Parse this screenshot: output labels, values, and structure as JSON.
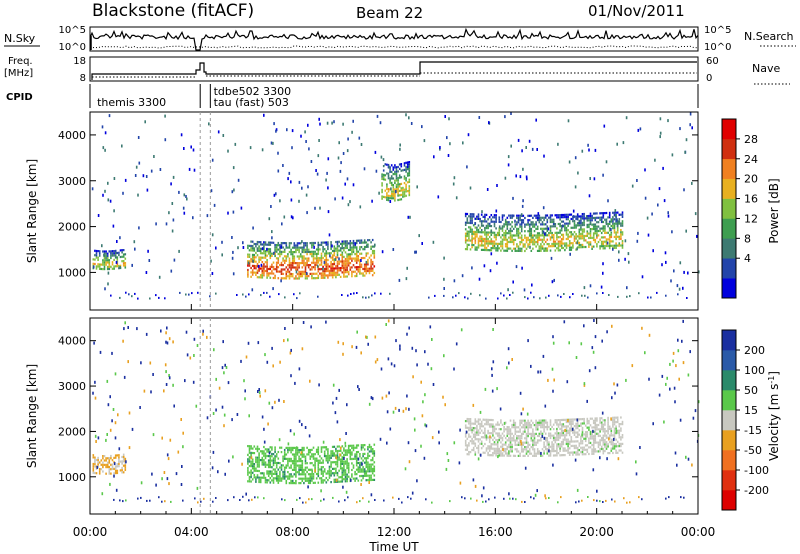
{
  "header": {
    "station": "Blackstone (fitACF)",
    "beam": "Beam 22",
    "date": "01/Nov/2011"
  },
  "top_panels": {
    "nsky_label": "N.Sky",
    "nsearch_label": "N.Search",
    "freq_label_1": "Freq.",
    "freq_label_2": "[MHz]",
    "nave_label": "Nave",
    "cpid_label": "CPID",
    "n_left_ticks": [
      "10^5",
      "10^0"
    ],
    "n_right_ticks": [
      "10^5",
      "10^0"
    ],
    "freq_left_ticks": [
      "18",
      "8"
    ],
    "freq_right_ticks": [
      "60",
      "0"
    ],
    "cpid_entries": [
      {
        "text": "themis 3300",
        "time_h": 0.2,
        "row": 1
      },
      {
        "text": "tdbe502 3300",
        "time_h": 4.8,
        "row": 0
      },
      {
        "text": "tau (fast) 503",
        "time_h": 4.8,
        "row": 1
      }
    ],
    "cpid_change_times_h": [
      4.35,
      4.75
    ]
  },
  "chart_data": [
    {
      "type": "heatmap",
      "title": "",
      "xlabel": "Time UT",
      "ylabel": "Slant Range [km]",
      "xlim_hours": [
        0,
        24
      ],
      "ylim_km": [
        180,
        4500
      ],
      "y_ticks": [
        "1000",
        "2000",
        "3000",
        "4000"
      ],
      "colorbar_label": "Power [dB]",
      "colorbar_ticks": [
        "4",
        "8",
        "12",
        "16",
        "20",
        "24",
        "28"
      ],
      "colorbar_colors": [
        "#0000dd",
        "#2244aa",
        "#3d7a72",
        "#3e9e50",
        "#80c040",
        "#e8b020",
        "#f08020",
        "#d03010",
        "#e00000"
      ],
      "features": [
        {
          "t": [
            0.1,
            1.4
          ],
          "r": [
            1100,
            1500
          ],
          "level": "mid"
        },
        {
          "t": [
            6.2,
            11.2
          ],
          "r": [
            900,
            1700
          ],
          "level": "high"
        },
        {
          "t": [
            14.8,
            21.0
          ],
          "r": [
            1500,
            2300
          ],
          "level": "mid"
        },
        {
          "t": [
            11.5,
            12.6
          ],
          "r": [
            2600,
            3400
          ],
          "level": "mid"
        }
      ]
    },
    {
      "type": "heatmap",
      "title": "",
      "xlabel": "Time UT",
      "ylabel": "Slant Range [km]",
      "xlim_hours": [
        0,
        24
      ],
      "ylim_km": [
        180,
        4500
      ],
      "y_ticks": [
        "1000",
        "2000",
        "3000",
        "4000"
      ],
      "colorbar_label": "Velocity [m s^-1]",
      "colorbar_label_main": "Velocity [m s",
      "colorbar_label_sup": "-1",
      "colorbar_label_end": "]",
      "colorbar_ticks": [
        "200",
        "100",
        "50",
        "15",
        "-15",
        "-50",
        "-100",
        "-200"
      ],
      "colorbar_colors": [
        "#1a2fa0",
        "#2a5aa8",
        "#2a8a6a",
        "#5ac84a",
        "#c8c8c0",
        "#e8a020",
        "#f07020",
        "#e03010",
        "#dd0000"
      ],
      "x_ticks": [
        "00:00",
        "04:00",
        "08:00",
        "12:00",
        "16:00",
        "20:00",
        "00:00"
      ],
      "features": [
        {
          "t": [
            6.2,
            11.2
          ],
          "r": [
            900,
            1700
          ],
          "velocity": "positive"
        },
        {
          "t": [
            14.8,
            21.0
          ],
          "r": [
            1500,
            2300
          ],
          "velocity": "near-zero"
        },
        {
          "t": [
            0.1,
            1.4
          ],
          "r": [
            1100,
            1500
          ],
          "velocity": "negative"
        }
      ]
    }
  ]
}
